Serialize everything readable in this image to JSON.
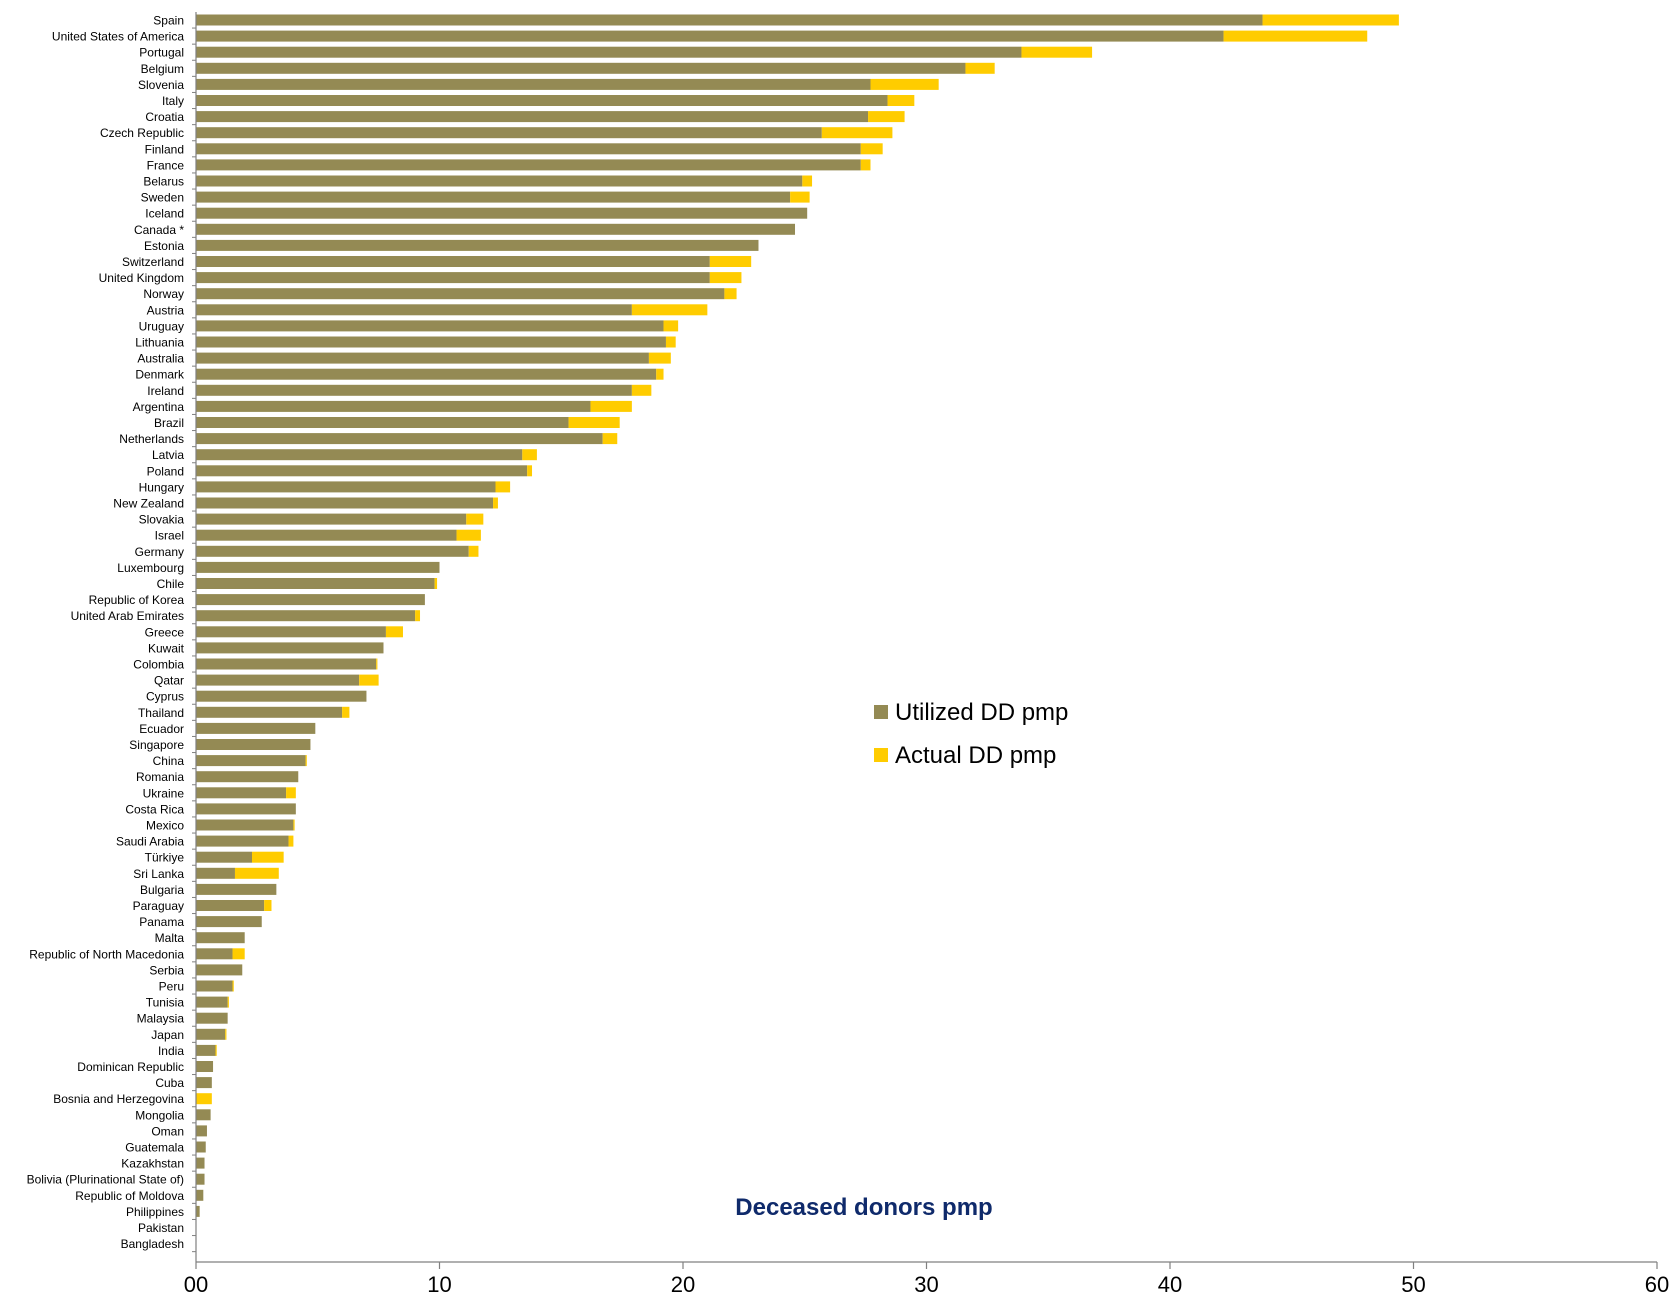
{
  "chart_data": {
    "type": "bar",
    "orientation": "horizontal",
    "stacked": true,
    "title": "Deceased donors pmp",
    "xlabel": "",
    "ylabel": "",
    "xlim": [
      0,
      60
    ],
    "x_ticks": [
      "00",
      "10",
      "20",
      "30",
      "40",
      "50",
      "60"
    ],
    "grid": false,
    "legend_position": "center-right",
    "categories": [
      "Spain",
      "United States of America",
      "Portugal",
      "Belgium",
      "Slovenia",
      "Italy",
      "Croatia",
      "Czech Republic",
      "Finland",
      "France",
      "Belarus",
      "Sweden",
      "Iceland",
      "Canada *",
      "Estonia",
      "Switzerland",
      "United Kingdom",
      "Norway",
      "Austria",
      "Uruguay",
      "Lithuania",
      "Australia",
      "Denmark",
      "Ireland",
      "Argentina",
      "Brazil",
      "Netherlands",
      "Latvia",
      "Poland",
      "Hungary",
      "New Zealand",
      "Slovakia",
      "Israel",
      "Germany",
      "Luxembourg",
      "Chile",
      "Republic of Korea",
      "United Arab Emirates",
      "Greece",
      "Kuwait",
      "Colombia",
      "Qatar",
      "Cyprus",
      "Thailand",
      "Ecuador",
      "Singapore",
      "China",
      "Romania",
      "Ukraine",
      "Costa Rica",
      "Mexico",
      "Saudi Arabia",
      "Türkiye",
      "Sri Lanka",
      "Bulgaria",
      "Paraguay",
      "Panama",
      "Malta",
      "Republic of North Macedonia",
      "Serbia",
      "Peru",
      "Tunisia",
      "Malaysia",
      "Japan",
      "India",
      "Dominican Republic",
      "Cuba",
      "Bosnia and Herzegovina",
      "Mongolia",
      "Oman",
      "Guatemala",
      "Kazakhstan",
      "Bolivia (Plurinational State of)",
      "Republic of Moldova",
      "Philippines",
      "Pakistan",
      "Bangladesh"
    ],
    "series": [
      {
        "name": "Utilized DD pmp",
        "color": "#948a54",
        "values": [
          43.8,
          42.2,
          33.9,
          31.6,
          27.7,
          28.4,
          27.6,
          25.7,
          27.3,
          27.3,
          24.9,
          24.4,
          25.1,
          24.6,
          23.1,
          21.1,
          21.1,
          21.7,
          17.9,
          19.2,
          19.3,
          18.6,
          18.9,
          17.9,
          16.2,
          15.3,
          16.7,
          13.4,
          13.6,
          12.3,
          12.2,
          11.1,
          10.7,
          11.2,
          10.0,
          9.8,
          9.4,
          9.0,
          7.8,
          7.7,
          7.4,
          6.7,
          7.0,
          6.0,
          4.9,
          4.7,
          4.5,
          4.2,
          3.7,
          4.1,
          4.0,
          3.8,
          2.3,
          1.6,
          3.3,
          2.8,
          2.7,
          2.0,
          1.5,
          1.9,
          1.5,
          1.3,
          1.3,
          1.2,
          0.8,
          0.7,
          0.65,
          0.0,
          0.6,
          0.45,
          0.4,
          0.35,
          0.35,
          0.3,
          0.15,
          0.0,
          0.0
        ]
      },
      {
        "name": "Actual DD pmp",
        "color": "#ffcc00",
        "values": [
          5.6,
          5.9,
          2.9,
          1.2,
          2.8,
          1.1,
          1.5,
          2.9,
          0.9,
          0.4,
          0.4,
          0.8,
          0.0,
          0.0,
          0.0,
          1.7,
          1.3,
          0.5,
          3.1,
          0.6,
          0.4,
          0.9,
          0.3,
          0.8,
          1.7,
          2.1,
          0.6,
          0.6,
          0.2,
          0.6,
          0.2,
          0.7,
          1.0,
          0.4,
          0.0,
          0.1,
          0.0,
          0.2,
          0.7,
          0.0,
          0.05,
          0.8,
          0.0,
          0.3,
          0.0,
          0.0,
          0.05,
          0.0,
          0.4,
          0.0,
          0.05,
          0.2,
          1.3,
          1.8,
          0.0,
          0.3,
          0.0,
          0.0,
          0.5,
          0.0,
          0.05,
          0.05,
          0.0,
          0.05,
          0.05,
          0.0,
          0.0,
          0.65,
          0.0,
          0.0,
          0.0,
          0.0,
          0.0,
          0.0,
          0.0,
          0.0,
          0.0
        ]
      }
    ]
  }
}
